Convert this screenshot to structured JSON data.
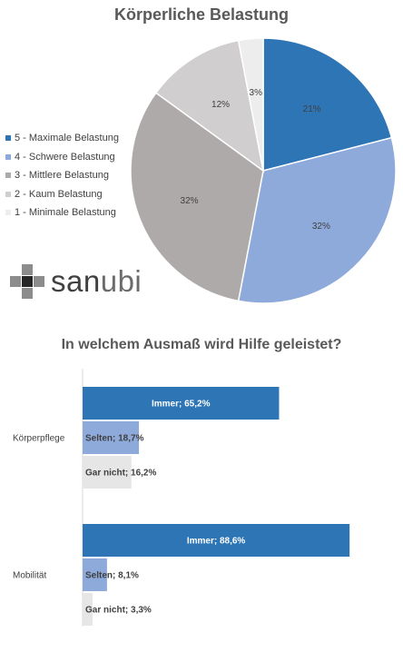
{
  "chart_data": [
    {
      "type": "pie",
      "title": "Körperliche Belastung",
      "categories": [
        "5 - Maximale Belastung",
        "4 - Schwere Belastung",
        "3 - Mittlere Belastung",
        "2 - Kaum Belastung",
        "1 - Minimale Belastung"
      ],
      "values": [
        21,
        32,
        32,
        12,
        3
      ],
      "labels": [
        "21%",
        "32%",
        "32%",
        "12%",
        "3%"
      ],
      "colors": [
        "#2e75b6",
        "#8eaadb",
        "#aeaaaa",
        "#d0cece",
        "#ededed"
      ],
      "legend_position": "left"
    },
    {
      "type": "bar",
      "orientation": "horizontal",
      "title": "In welchem Ausmaß wird Hilfe geleistet?",
      "categories": [
        "Körperpflege",
        "Mobilität"
      ],
      "series": [
        {
          "name": "Immer",
          "values": [
            65.2,
            88.6
          ],
          "labels": [
            "Immer; 65,2%",
            "Immer; 88,6%"
          ],
          "color": "#2e75b6"
        },
        {
          "name": "Selten",
          "values": [
            18.7,
            8.1
          ],
          "labels": [
            "Selten; 18,7%",
            "Selten; 8,1%"
          ],
          "color": "#8eaadb"
        },
        {
          "name": "Gar nicht",
          "values": [
            16.2,
            3.3
          ],
          "labels": [
            "Gar nicht; 16,2%",
            "Gar nicht; 3,3%"
          ],
          "color": "#e7e6e6"
        }
      ],
      "xlim": [
        0,
        100
      ]
    }
  ],
  "logo": {
    "text_dark": "san",
    "text_light": "ubi"
  }
}
